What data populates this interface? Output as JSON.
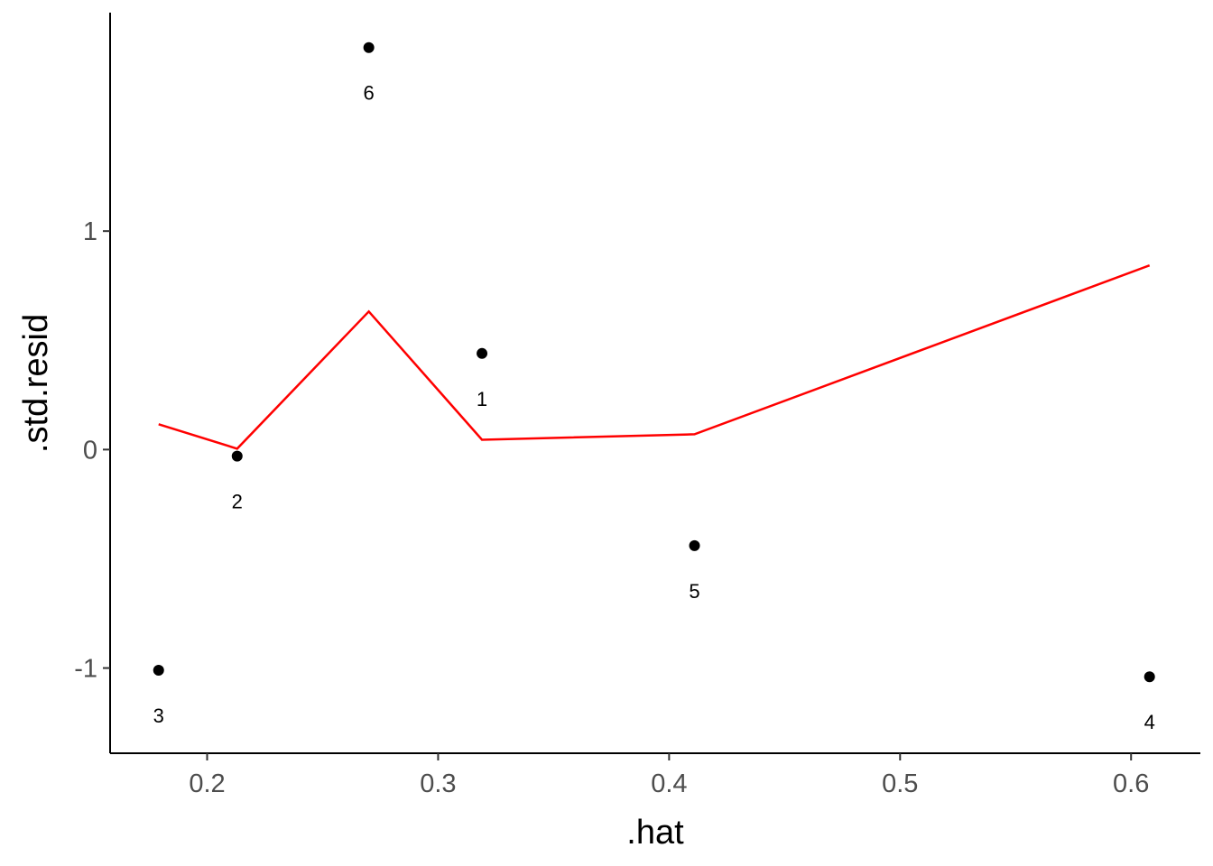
{
  "chart_data": {
    "type": "scatter",
    "xlabel": ".hat",
    "ylabel": ".std.resid",
    "xlim": [
      0.158,
      0.63
    ],
    "ylim": [
      -1.39,
      2.0
    ],
    "xticks": [
      0.2,
      0.3,
      0.4,
      0.5,
      0.6
    ],
    "xtick_labels": [
      "0.2",
      "0.3",
      "0.4",
      "0.5",
      "0.6"
    ],
    "yticks": [
      -1,
      0,
      1
    ],
    "ytick_labels": [
      "-1",
      "0",
      "1"
    ],
    "grid": false,
    "points": [
      {
        "label": "3",
        "x": 0.179,
        "y": -1.01
      },
      {
        "label": "2",
        "x": 0.213,
        "y": -0.03
      },
      {
        "label": "6",
        "x": 0.27,
        "y": 1.84
      },
      {
        "label": "1",
        "x": 0.319,
        "y": 0.44
      },
      {
        "label": "5",
        "x": 0.411,
        "y": -0.44
      },
      {
        "label": "4",
        "x": 0.608,
        "y": -1.04
      }
    ],
    "line": {
      "color": "#ff0000",
      "x": [
        0.179,
        0.213,
        0.27,
        0.319,
        0.411,
        0.608
      ],
      "y": [
        0.116,
        0.004,
        0.632,
        0.045,
        0.07,
        0.843
      ]
    },
    "point_color": "#000000"
  }
}
